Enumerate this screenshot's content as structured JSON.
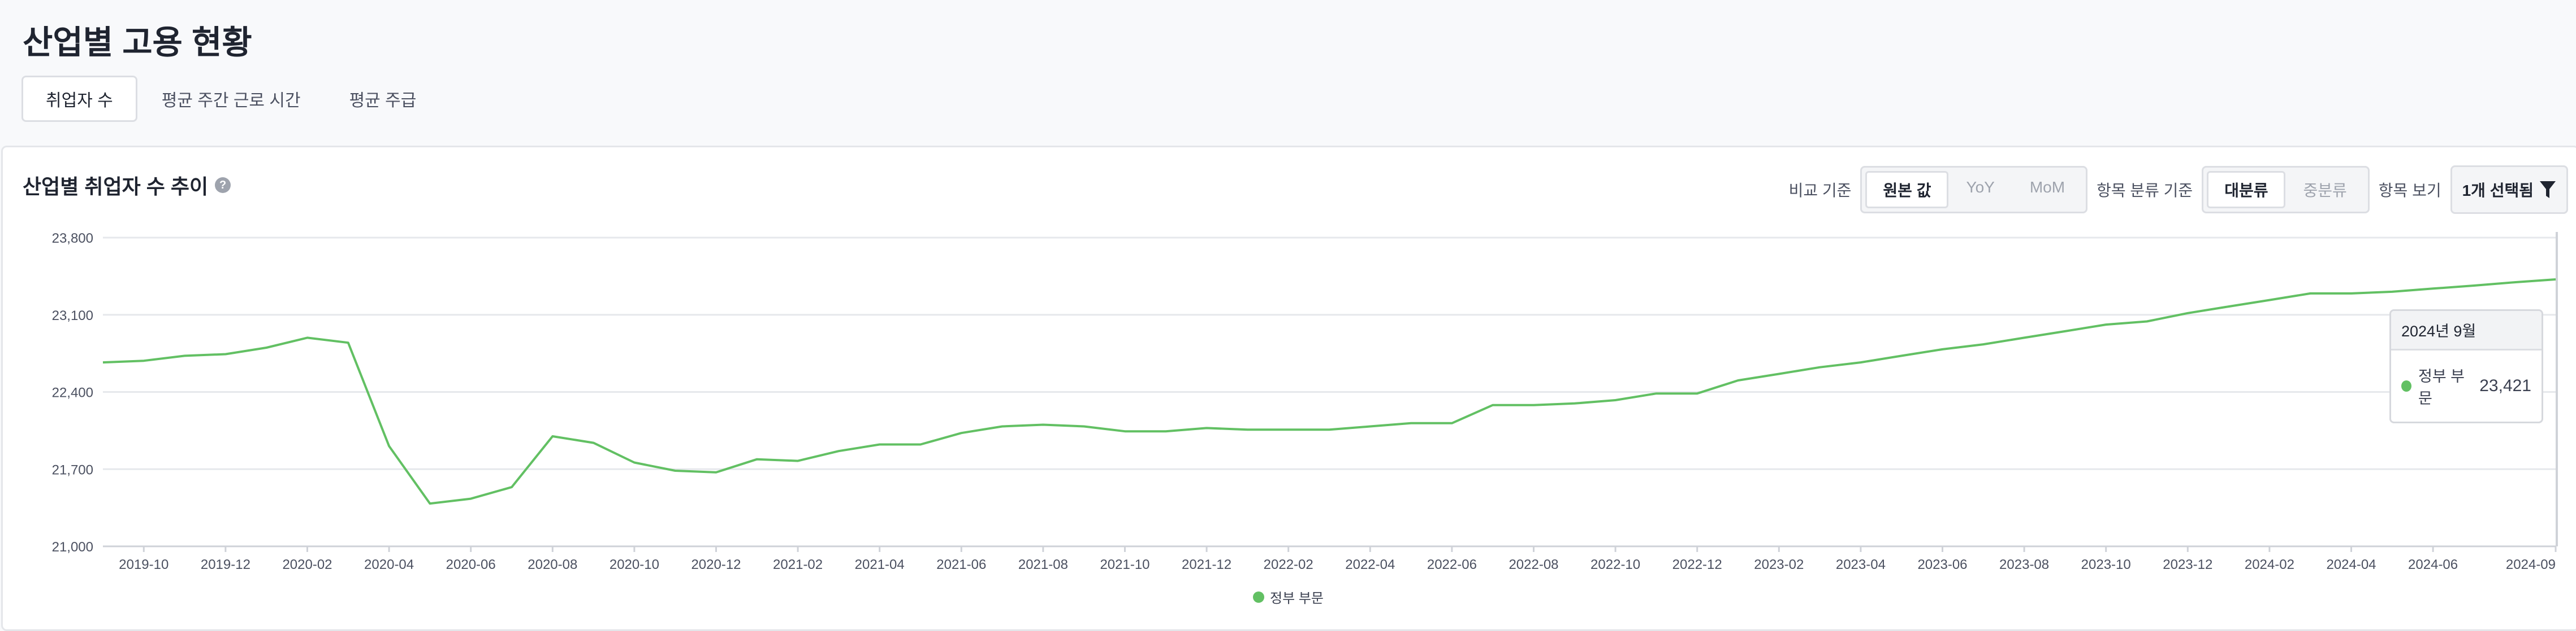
{
  "page": {
    "title": "산업별 고용 현황",
    "tabs": [
      "취업자 수",
      "평균 주간 근로 시간",
      "평균 주급"
    ]
  },
  "card": {
    "title": "산업별 취업자 수 추이",
    "help_icon": "?",
    "compare_label": "비교 기준",
    "compare_options": [
      "원본 값",
      "YoY",
      "MoM"
    ],
    "class_label": "항목 분류 기준",
    "class_options": [
      "대분류",
      "중분류"
    ],
    "view_label": "항목 보기",
    "view_value": "1개 선택됨"
  },
  "colors": {
    "series": "#62c063"
  },
  "tooltip": {
    "title": "2024년 9월",
    "series": "정부 부문",
    "value": "23,421"
  },
  "chart_data": {
    "type": "line",
    "title": "산업별 취업자 수 추이",
    "xlabel": "",
    "ylabel": "",
    "ylim": [
      21000,
      23800
    ],
    "yticks": [
      "21,000",
      "21,700",
      "22,400",
      "23,100",
      "23,800"
    ],
    "xticks": [
      "2019-10",
      "2019-12",
      "2020-02",
      "2020-04",
      "2020-06",
      "2020-08",
      "2020-10",
      "2020-12",
      "2021-02",
      "2021-04",
      "2021-06",
      "2021-08",
      "2021-10",
      "2021-12",
      "2022-02",
      "2022-04",
      "2022-06",
      "2022-08",
      "2022-10",
      "2022-12",
      "2023-02",
      "2023-04",
      "2023-06",
      "2023-08",
      "2023-10",
      "2023-12",
      "2024-02",
      "2024-04",
      "2024-06",
      "2024-09"
    ],
    "x_start": "2019-09",
    "x_end": "2024-09",
    "legend": "bottom",
    "series": [
      {
        "name": "정부 부문",
        "values": [
          22668,
          22683,
          22728,
          22743,
          22802,
          22892,
          22847,
          21909,
          21388,
          21432,
          21537,
          21998,
          21939,
          21760,
          21686,
          21671,
          21790,
          21775,
          21864,
          21924,
          21924,
          22028,
          22088,
          22103,
          22088,
          22043,
          22043,
          22073,
          22058,
          22058,
          22058,
          22088,
          22117,
          22117,
          22281,
          22281,
          22296,
          22326,
          22386,
          22386,
          22505,
          22564,
          22624,
          22668,
          22728,
          22787,
          22832,
          22892,
          22951,
          23011,
          23040,
          23115,
          23175,
          23234,
          23294,
          23294,
          23309,
          23338,
          23365,
          23395,
          23421
        ]
      }
    ]
  }
}
